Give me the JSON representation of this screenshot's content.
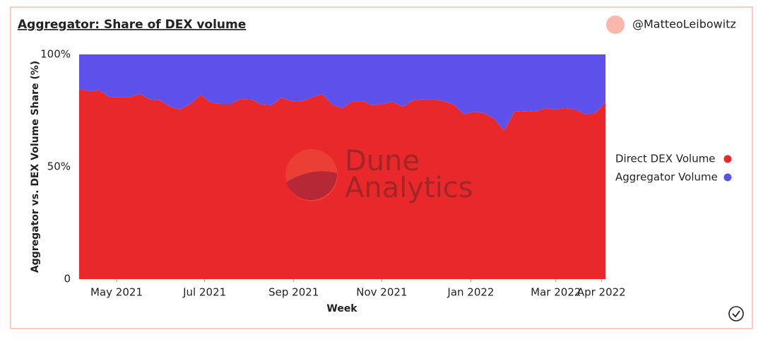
{
  "header": {
    "title": "Aggregator: Share of DEX volume",
    "author": "@MatteoLeibowitz"
  },
  "watermark": [
    "Dune",
    "Analytics"
  ],
  "chart_data": {
    "type": "stacked-area-percent",
    "x_label": "Week",
    "y_label": "Aggregator vs. DEX Volume Share (%)",
    "categories": [
      null,
      null,
      null,
      null,
      null,
      null,
      null,
      null,
      null,
      null,
      null,
      null,
      null,
      null,
      null,
      null,
      null,
      null,
      null,
      null,
      null,
      null,
      null,
      null,
      null,
      null,
      null,
      null,
      null,
      null,
      null,
      null,
      null,
      null,
      null,
      null,
      null,
      null,
      null,
      null,
      null,
      null,
      null,
      null,
      null,
      null,
      null,
      null,
      null,
      null,
      null,
      null,
      null
    ],
    "xticks": [
      {
        "value": 3.7,
        "label": "May 2021"
      },
      {
        "value": 12.4,
        "label": "Jul 2021"
      },
      {
        "value": 21.2,
        "label": "Sep 2021"
      },
      {
        "value": 29.9,
        "label": "Nov 2021"
      },
      {
        "value": 38.7,
        "label": "Jan 2022"
      },
      {
        "value": 47.1,
        "label": "Mar 2022"
      },
      {
        "value": 51.6,
        "label": "Apr 2022"
      }
    ],
    "ylim": [
      0,
      100
    ],
    "yticks": [
      0,
      {
        "value": 50,
        "label": "50%"
      },
      {
        "value": 100,
        "label": "100%"
      }
    ],
    "legend": "right",
    "series": [
      {
        "name": "Direct DEX Volume",
        "color": "#e8282a",
        "values": [
          84.6,
          83.6,
          84,
          81,
          81,
          81,
          82.4,
          80,
          79.6,
          76.7,
          75.5,
          78,
          82,
          78.6,
          78,
          78,
          80.2,
          80,
          77.7,
          77.4,
          80.8,
          79.2,
          79.2,
          80.8,
          82.4,
          77.7,
          76,
          79.2,
          79.2,
          77.4,
          78,
          78.9,
          76.7,
          79.6,
          80,
          80,
          79.2,
          77.7,
          73.3,
          74.5,
          73.9,
          71.4,
          66,
          74.5,
          74.8,
          74.5,
          76,
          75.5,
          76,
          75.5,
          73.3,
          73.9,
          78.6
        ]
      },
      {
        "name": "Aggregator Volume",
        "color": "#5e50eb",
        "values": [
          15.4,
          16.4,
          16,
          19,
          19,
          19,
          17.6,
          20,
          20.4,
          23.3,
          24.5,
          22,
          18,
          21.4,
          22,
          22,
          19.8,
          20,
          22.3,
          22.6,
          19.2,
          20.8,
          20.8,
          19.2,
          17.6,
          22.3,
          24,
          20.8,
          20.8,
          22.6,
          22,
          21.1,
          23.3,
          20.4,
          20,
          20,
          20.8,
          22.3,
          26.7,
          25.5,
          26.1,
          28.6,
          34,
          25.5,
          25.2,
          25.5,
          24,
          24.5,
          24,
          24.5,
          26.7,
          26.1,
          21.4
        ]
      }
    ]
  }
}
